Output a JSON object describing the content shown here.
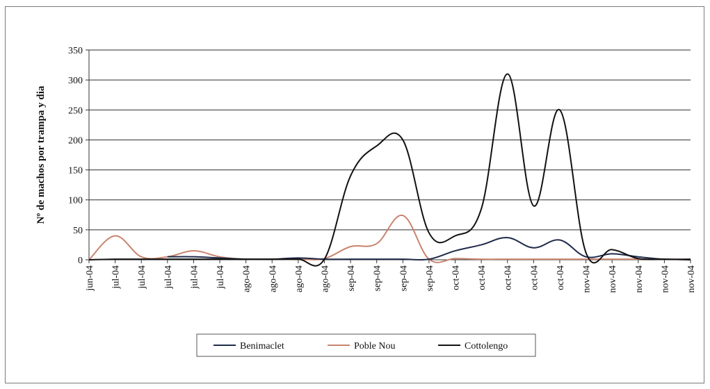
{
  "chart_data": {
    "type": "line",
    "title": "",
    "xlabel": "",
    "ylabel": "Nº de machos  por trampa y dia",
    "ylim": [
      0,
      350
    ],
    "yticks": [
      0,
      50,
      100,
      150,
      200,
      250,
      300,
      350
    ],
    "grid": true,
    "legend_position": "bottom",
    "categories": [
      "jun-04",
      "jul-04",
      "jul-04",
      "jul-04",
      "jul-04",
      "jul-04",
      "ago-04",
      "ago-04",
      "ago-04",
      "ago-04",
      "sep-04",
      "sep-04",
      "sep-04",
      "sep-04",
      "oct-04",
      "oct-04",
      "oct-04",
      "oct-04",
      "oct-04",
      "nov-04",
      "nov-04",
      "nov-04",
      "nov-04",
      "nov-04"
    ],
    "series": [
      {
        "name": "Benimaclet",
        "color": "#1f2a4a",
        "points": [
          [
            3,
            5
          ],
          [
            4,
            5
          ],
          [
            5,
            3
          ],
          [
            6,
            1
          ],
          [
            7,
            1
          ],
          [
            8,
            3
          ],
          [
            9,
            1
          ],
          [
            10,
            1
          ],
          [
            11,
            1
          ],
          [
            12,
            1
          ],
          [
            13,
            1
          ],
          [
            14,
            15
          ],
          [
            15,
            25
          ],
          [
            16,
            37
          ],
          [
            17,
            20
          ],
          [
            18,
            33
          ],
          [
            19,
            5
          ],
          [
            20,
            10
          ],
          [
            21,
            5
          ],
          [
            22,
            1
          ],
          [
            23,
            1
          ]
        ]
      },
      {
        "name": "Poble Nou",
        "color": "#c9836d",
        "points": [
          [
            0,
            0
          ],
          [
            1,
            40
          ],
          [
            2,
            5
          ],
          [
            3,
            5
          ],
          [
            4,
            15
          ],
          [
            5,
            5
          ],
          [
            6,
            1
          ],
          [
            7,
            1
          ],
          [
            8,
            1
          ],
          [
            9,
            2
          ],
          [
            10,
            22
          ],
          [
            11,
            27
          ],
          [
            12,
            74
          ],
          [
            13,
            1
          ],
          [
            14,
            2
          ],
          [
            15,
            1
          ],
          [
            16,
            1
          ],
          [
            17,
            1
          ],
          [
            18,
            1
          ],
          [
            19,
            1
          ],
          [
            20,
            1
          ],
          [
            21,
            1
          ],
          [
            22,
            1
          ],
          [
            23,
            1
          ]
        ]
      },
      {
        "name": "Cottolengo",
        "color": "#111111",
        "points": [
          [
            0,
            0
          ],
          [
            1,
            1
          ],
          [
            2,
            1
          ],
          [
            3,
            1
          ],
          [
            4,
            1
          ],
          [
            5,
            1
          ],
          [
            6,
            1
          ],
          [
            7,
            1
          ],
          [
            8,
            1
          ],
          [
            9,
            1
          ],
          [
            10,
            140
          ],
          [
            11,
            190
          ],
          [
            12,
            200
          ],
          [
            13,
            45
          ],
          [
            14,
            40
          ],
          [
            15,
            85
          ],
          [
            16,
            310
          ],
          [
            17,
            90
          ],
          [
            18,
            250
          ],
          [
            19,
            12
          ],
          [
            20,
            17
          ],
          [
            21,
            2
          ],
          [
            22,
            1
          ],
          [
            23,
            0
          ]
        ]
      }
    ]
  }
}
